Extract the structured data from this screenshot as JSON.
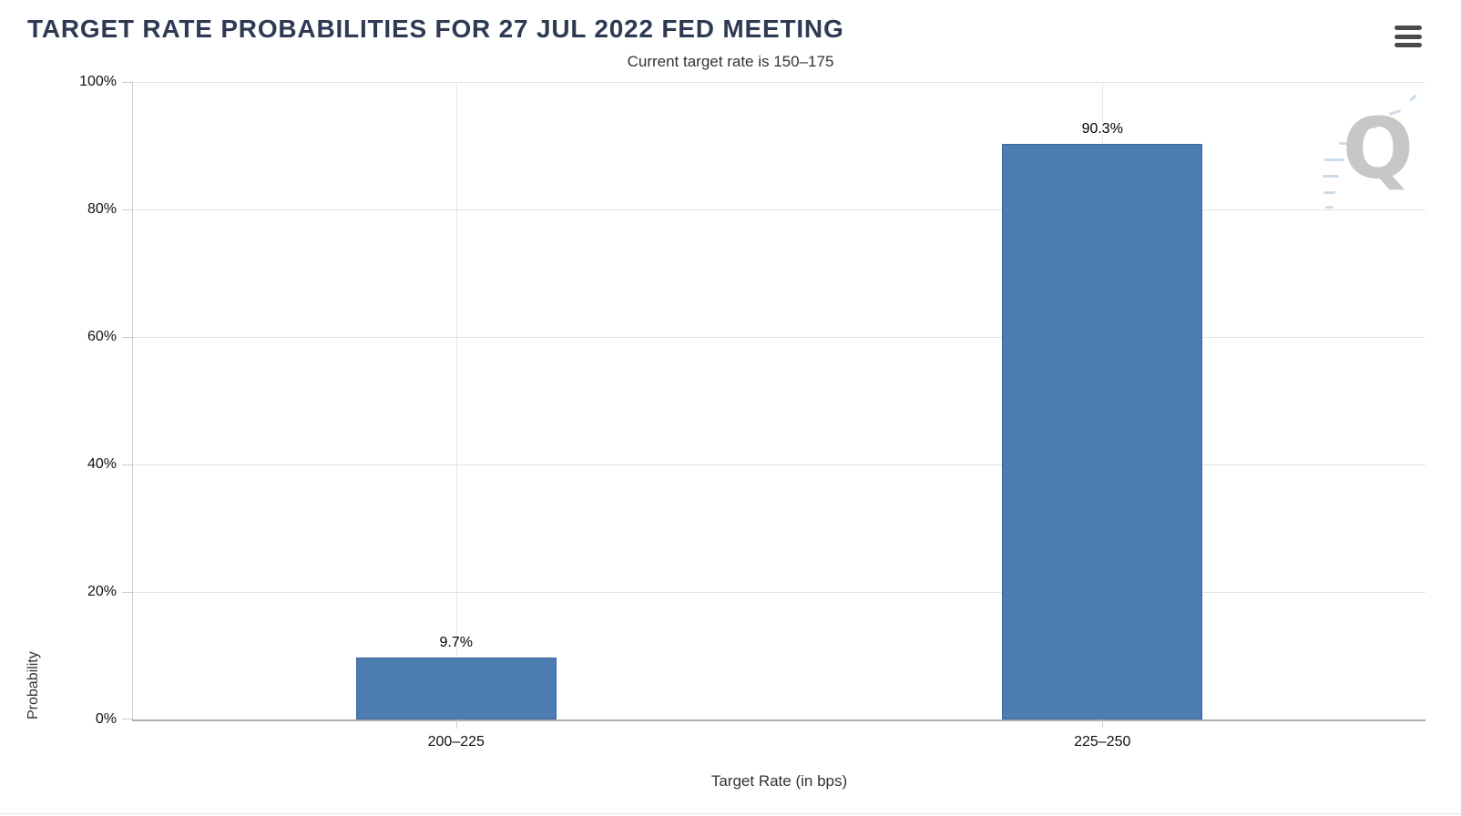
{
  "header": {
    "title": "TARGET RATE PROBABILITIES FOR 27 JUL 2022 FED MEETING",
    "menu_icon": "hamburger-icon"
  },
  "watermark": {
    "text": "Q"
  },
  "chart_data": {
    "type": "bar",
    "title": "TARGET RATE PROBABILITIES FOR 27 JUL 2022 FED MEETING",
    "subtitle": "Current target rate is 150–175",
    "categories": [
      "200–225",
      "225–250"
    ],
    "values": [
      9.7,
      90.3
    ],
    "data_labels": [
      "9.7%",
      "90.3%"
    ],
    "xlabel": "Target Rate (in bps)",
    "ylabel": "Probability",
    "ylim": [
      0,
      100
    ],
    "yticks": [
      0,
      20,
      40,
      60,
      80,
      100
    ],
    "ytick_labels": [
      "0%",
      "20%",
      "40%",
      "60%",
      "80%",
      "100%"
    ],
    "legend_position": "none",
    "grid": {
      "horizontal": true,
      "vertical_category_lines": true
    },
    "bar_color": "#4d7cb0",
    "bar_border_color": "#3a689b",
    "title_color": "#2e3a53"
  }
}
